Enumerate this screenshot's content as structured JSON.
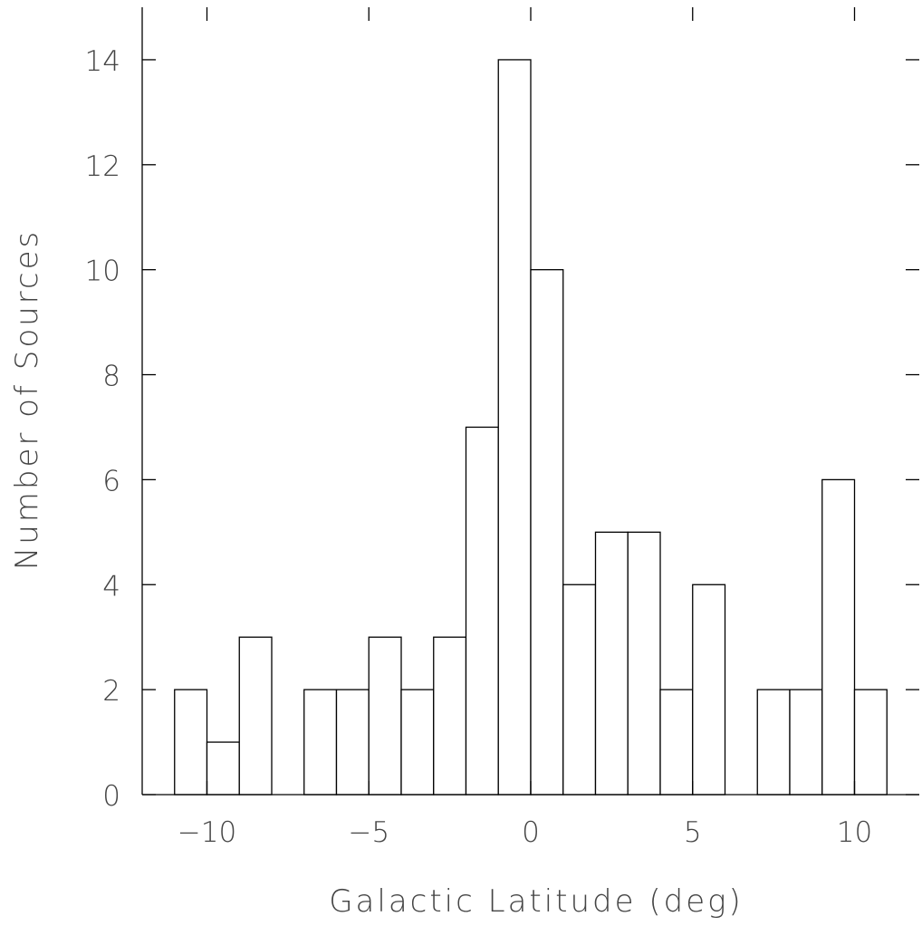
{
  "chart_data": {
    "type": "bar",
    "subtype": "histogram",
    "title": "",
    "xlabel": "Galactic Latitude (deg)",
    "ylabel": "Number of Sources",
    "xlim": [
      -12,
      12
    ],
    "ylim": [
      0,
      15
    ],
    "bin_width": 1,
    "x_tick_values": [
      -10,
      -5,
      0,
      5,
      10
    ],
    "x_tick_labels": [
      "−10",
      "−5",
      "0",
      "5",
      "10"
    ],
    "y_tick_values": [
      0,
      2,
      4,
      6,
      8,
      10,
      12,
      14
    ],
    "y_tick_labels": [
      "0",
      "2",
      "4",
      "6",
      "8",
      "10",
      "12",
      "14"
    ],
    "grid": false,
    "legend": false,
    "bars": [
      {
        "x0": -11,
        "x1": -10,
        "count": 2
      },
      {
        "x0": -10,
        "x1": -9,
        "count": 1
      },
      {
        "x0": -9,
        "x1": -8,
        "count": 3
      },
      {
        "x0": -7,
        "x1": -6,
        "count": 2
      },
      {
        "x0": -6,
        "x1": -5,
        "count": 2
      },
      {
        "x0": -5,
        "x1": -4,
        "count": 3
      },
      {
        "x0": -4,
        "x1": -3,
        "count": 2
      },
      {
        "x0": -3,
        "x1": -2,
        "count": 3
      },
      {
        "x0": -2,
        "x1": -1,
        "count": 7
      },
      {
        "x0": -1,
        "x1": 0,
        "count": 14
      },
      {
        "x0": 0,
        "x1": 1,
        "count": 10
      },
      {
        "x0": 1,
        "x1": 2,
        "count": 4
      },
      {
        "x0": 2,
        "x1": 3,
        "count": 5
      },
      {
        "x0": 3,
        "x1": 4,
        "count": 5
      },
      {
        "x0": 4,
        "x1": 5,
        "count": 2
      },
      {
        "x0": 5,
        "x1": 6,
        "count": 4
      },
      {
        "x0": 7,
        "x1": 8,
        "count": 2
      },
      {
        "x0": 8,
        "x1": 9,
        "count": 2
      },
      {
        "x0": 9,
        "x1": 10,
        "count": 6
      },
      {
        "x0": 10,
        "x1": 11,
        "count": 2
      }
    ],
    "colors": {
      "bar_fill": "#ffffff",
      "bar_stroke": "#000000",
      "text": "#444444"
    }
  }
}
